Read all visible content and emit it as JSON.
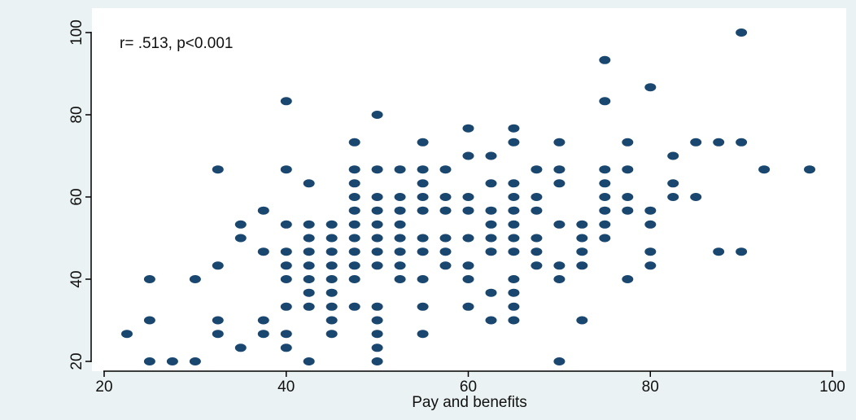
{
  "chart_data": {
    "type": "scatter",
    "title": "",
    "xlabel": "Pay and benefits",
    "ylabel": "",
    "xlim": [
      20,
      100
    ],
    "ylim": [
      20,
      100
    ],
    "xticks": [
      20,
      40,
      60,
      80,
      100
    ],
    "yticks": [
      20,
      40,
      60,
      80,
      100
    ],
    "annotation": "r= .513, p<0.001",
    "grid": false,
    "legend": "none",
    "marker_color": "#1a476f",
    "series": [
      {
        "points": [
          [
            22.5,
            26.7
          ],
          [
            25,
            20
          ],
          [
            25,
            30
          ],
          [
            25,
            40
          ],
          [
            27.5,
            20
          ],
          [
            30,
            20
          ],
          [
            30,
            40
          ],
          [
            32.5,
            26.7
          ],
          [
            32.5,
            30
          ],
          [
            32.5,
            43.3
          ],
          [
            32.5,
            66.7
          ],
          [
            35,
            23.3
          ],
          [
            35,
            50
          ],
          [
            35,
            53.3
          ],
          [
            37.5,
            26.7
          ],
          [
            37.5,
            30
          ],
          [
            37.5,
            46.7
          ],
          [
            37.5,
            56.7
          ],
          [
            40,
            23.3
          ],
          [
            40,
            26.7
          ],
          [
            40,
            33.3
          ],
          [
            40,
            40
          ],
          [
            40,
            43.3
          ],
          [
            40,
            46.7
          ],
          [
            40,
            53.3
          ],
          [
            40,
            66.7
          ],
          [
            40,
            83.3
          ],
          [
            42.5,
            20
          ],
          [
            42.5,
            33.3
          ],
          [
            42.5,
            36.7
          ],
          [
            42.5,
            40
          ],
          [
            42.5,
            43.3
          ],
          [
            42.5,
            46.7
          ],
          [
            42.5,
            50
          ],
          [
            42.5,
            53.3
          ],
          [
            42.5,
            63.3
          ],
          [
            45,
            26.7
          ],
          [
            45,
            30
          ],
          [
            45,
            33.3
          ],
          [
            45,
            36.7
          ],
          [
            45,
            40
          ],
          [
            45,
            43.3
          ],
          [
            45,
            46.7
          ],
          [
            45,
            50
          ],
          [
            45,
            53.3
          ],
          [
            47.5,
            33.3
          ],
          [
            47.5,
            40
          ],
          [
            47.5,
            43.3
          ],
          [
            47.5,
            46.7
          ],
          [
            47.5,
            50
          ],
          [
            47.5,
            53.3
          ],
          [
            47.5,
            56.7
          ],
          [
            47.5,
            60
          ],
          [
            47.5,
            63.3
          ],
          [
            47.5,
            66.7
          ],
          [
            47.5,
            73.3
          ],
          [
            50,
            20
          ],
          [
            50,
            23.3
          ],
          [
            50,
            26.7
          ],
          [
            50,
            30
          ],
          [
            50,
            33.3
          ],
          [
            50,
            43.3
          ],
          [
            50,
            46.7
          ],
          [
            50,
            50
          ],
          [
            50,
            53.3
          ],
          [
            50,
            56.7
          ],
          [
            50,
            60
          ],
          [
            50,
            66.7
          ],
          [
            50,
            80
          ],
          [
            52.5,
            40
          ],
          [
            52.5,
            43.3
          ],
          [
            52.5,
            46.7
          ],
          [
            52.5,
            50
          ],
          [
            52.5,
            53.3
          ],
          [
            52.5,
            56.7
          ],
          [
            52.5,
            60
          ],
          [
            52.5,
            66.7
          ],
          [
            55,
            26.7
          ],
          [
            55,
            33.3
          ],
          [
            55,
            40
          ],
          [
            55,
            46.7
          ],
          [
            55,
            50
          ],
          [
            55,
            56.7
          ],
          [
            55,
            60
          ],
          [
            55,
            63.3
          ],
          [
            55,
            66.7
          ],
          [
            55,
            73.3
          ],
          [
            57.5,
            43.3
          ],
          [
            57.5,
            46.7
          ],
          [
            57.5,
            50
          ],
          [
            57.5,
            56.7
          ],
          [
            57.5,
            60
          ],
          [
            57.5,
            66.7
          ],
          [
            60,
            33.3
          ],
          [
            60,
            40
          ],
          [
            60,
            43.3
          ],
          [
            60,
            50
          ],
          [
            60,
            56.7
          ],
          [
            60,
            60
          ],
          [
            60,
            70
          ],
          [
            60,
            76.7
          ],
          [
            62.5,
            30
          ],
          [
            62.5,
            36.7
          ],
          [
            62.5,
            46.7
          ],
          [
            62.5,
            50
          ],
          [
            62.5,
            53.3
          ],
          [
            62.5,
            56.7
          ],
          [
            62.5,
            63.3
          ],
          [
            62.5,
            70
          ],
          [
            65,
            30
          ],
          [
            65,
            33.3
          ],
          [
            65,
            36.7
          ],
          [
            65,
            40
          ],
          [
            65,
            46.7
          ],
          [
            65,
            50
          ],
          [
            65,
            53.3
          ],
          [
            65,
            56.7
          ],
          [
            65,
            60
          ],
          [
            65,
            63.3
          ],
          [
            65,
            73.3
          ],
          [
            65,
            76.7
          ],
          [
            67.5,
            43.3
          ],
          [
            67.5,
            46.7
          ],
          [
            67.5,
            50
          ],
          [
            67.5,
            56.7
          ],
          [
            67.5,
            60
          ],
          [
            67.5,
            66.7
          ],
          [
            70,
            20
          ],
          [
            70,
            40
          ],
          [
            70,
            43.3
          ],
          [
            70,
            53.3
          ],
          [
            70,
            63.3
          ],
          [
            70,
            66.7
          ],
          [
            70,
            73.3
          ],
          [
            72.5,
            30
          ],
          [
            72.5,
            43.3
          ],
          [
            72.5,
            46.7
          ],
          [
            72.5,
            50
          ],
          [
            72.5,
            53.3
          ],
          [
            75,
            50
          ],
          [
            75,
            53.3
          ],
          [
            75,
            56.7
          ],
          [
            75,
            60
          ],
          [
            75,
            63.3
          ],
          [
            75,
            66.7
          ],
          [
            75,
            83.3
          ],
          [
            75,
            93.3
          ],
          [
            77.5,
            40
          ],
          [
            77.5,
            56.7
          ],
          [
            77.5,
            60
          ],
          [
            77.5,
            66.7
          ],
          [
            77.5,
            73.3
          ],
          [
            80,
            43.3
          ],
          [
            80,
            46.7
          ],
          [
            80,
            53.3
          ],
          [
            80,
            56.7
          ],
          [
            80,
            86.7
          ],
          [
            82.5,
            60
          ],
          [
            82.5,
            63.3
          ],
          [
            82.5,
            70
          ],
          [
            85,
            60
          ],
          [
            85,
            73.3
          ],
          [
            87.5,
            46.7
          ],
          [
            87.5,
            73.3
          ],
          [
            90,
            46.7
          ],
          [
            90,
            73.3
          ],
          [
            90,
            100
          ],
          [
            92.5,
            66.7
          ],
          [
            97.5,
            66.7
          ]
        ]
      }
    ]
  }
}
